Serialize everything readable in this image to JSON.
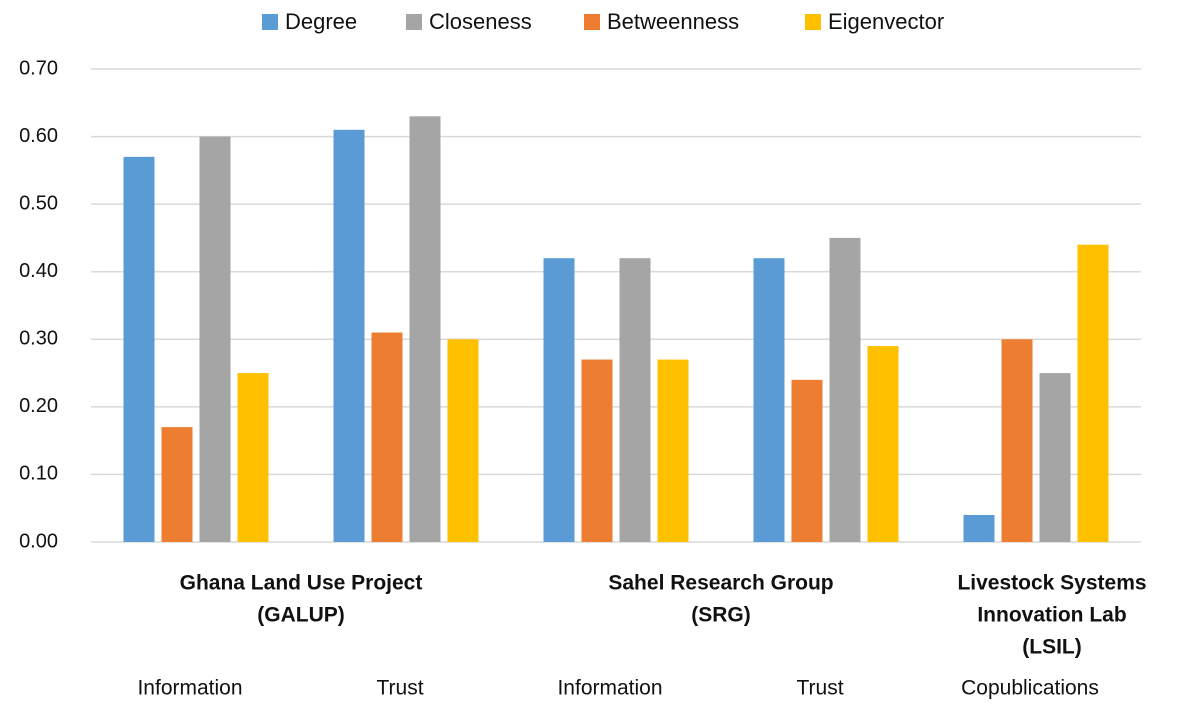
{
  "chart_data": {
    "type": "bar",
    "categories": [
      "Information",
      "Trust",
      "Information",
      "Trust",
      "Copublications"
    ],
    "groups": [
      {
        "lines": [
          "Ghana Land Use Project",
          "(GALUP)"
        ],
        "size": 2
      },
      {
        "lines": [
          "Sahel Research Group",
          "(SRG)"
        ],
        "size": 2
      },
      {
        "lines": [
          "Livestock Systems",
          "Innovation Lab",
          "(LSIL)"
        ],
        "size": 1
      }
    ],
    "series": [
      {
        "name": "Degree",
        "color": "#5b9bd5",
        "values": [
          0.57,
          0.61,
          0.42,
          0.42,
          0.04
        ]
      },
      {
        "name": "Betweenness",
        "color": "#ed7d31",
        "values": [
          0.17,
          0.31,
          0.27,
          0.24,
          0.3
        ]
      },
      {
        "name": "Closeness",
        "color": "#a5a5a5",
        "values": [
          0.6,
          0.63,
          0.42,
          0.45,
          0.25
        ]
      },
      {
        "name": "Eigenvector",
        "color": "#ffc000",
        "values": [
          0.25,
          0.3,
          0.27,
          0.29,
          0.44
        ]
      }
    ],
    "legend_order": [
      0,
      2,
      1,
      3
    ],
    "legend": "top",
    "ylim": [
      0,
      0.7
    ],
    "yticks": [
      {
        "value": 0,
        "label": "0.00"
      },
      {
        "value": 0.1,
        "label": "0.10"
      },
      {
        "value": 0.2,
        "label": "0.20"
      },
      {
        "value": 0.3,
        "label": "0.30"
      },
      {
        "value": 0.4,
        "label": "0.40"
      },
      {
        "value": 0.5,
        "label": "0.50"
      },
      {
        "value": 0.6,
        "label": "0.60"
      },
      {
        "value": 0.7,
        "label": "0.70"
      }
    ],
    "grid": true
  }
}
